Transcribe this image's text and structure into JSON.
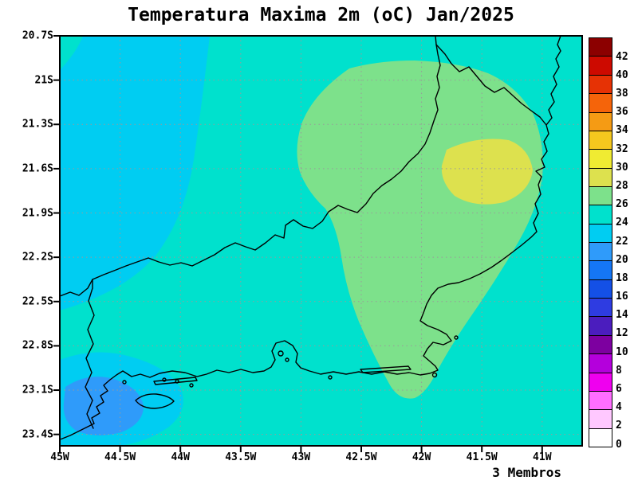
{
  "title": "Temperatura Maxima 2m (oC) Jan/2025",
  "footer": "3 Membros",
  "axes": {
    "lat_labels": [
      "20.7S",
      "21S",
      "21.3S",
      "21.6S",
      "21.9S",
      "22.2S",
      "22.5S",
      "22.8S",
      "23.1S",
      "23.4S"
    ],
    "lon_labels": [
      "45W",
      "44.5W",
      "44W",
      "43.5W",
      "43W",
      "42.5W",
      "42W",
      "41.5W",
      "41W"
    ]
  },
  "colorbar": {
    "unit": "oC",
    "tick_labels": [
      "0",
      "2",
      "4",
      "6",
      "8",
      "10",
      "12",
      "14",
      "16",
      "18",
      "20",
      "22",
      "24",
      "26",
      "28",
      "30",
      "32",
      "34",
      "36",
      "38",
      "40",
      "42"
    ],
    "segments": [
      {
        "range": "0-2",
        "color": "#ffffff"
      },
      {
        "range": "2-4",
        "color": "#ffc8ff"
      },
      {
        "range": "4-6",
        "color": "#ff6eff"
      },
      {
        "range": "6-8",
        "color": "#ef00ef"
      },
      {
        "range": "8-10",
        "color": "#b400dc"
      },
      {
        "range": "10-12",
        "color": "#7d00a0"
      },
      {
        "range": "12-14",
        "color": "#4b1dbe"
      },
      {
        "range": "14-16",
        "color": "#2e3ce1"
      },
      {
        "range": "16-18",
        "color": "#1450e6"
      },
      {
        "range": "18-20",
        "color": "#1576f5"
      },
      {
        "range": "20-22",
        "color": "#2f9bfa"
      },
      {
        "range": "22-24",
        "color": "#00cdf2"
      },
      {
        "range": "24-26",
        "color": "#00e1cd"
      },
      {
        "range": "26-28",
        "color": "#7de18b"
      },
      {
        "range": "28-30",
        "color": "#dde14e"
      },
      {
        "range": "30-32",
        "color": "#f0eb32"
      },
      {
        "range": "32-34",
        "color": "#f5c81e"
      },
      {
        "range": "34-36",
        "color": "#f59b14"
      },
      {
        "range": "36-38",
        "color": "#f5640a"
      },
      {
        "range": "38-40",
        "color": "#e63205"
      },
      {
        "range": "40-42",
        "color": "#cd0a00"
      },
      {
        "range": "42-44",
        "color": "#8c0000"
      }
    ]
  },
  "map": {
    "colors": {
      "field_24_26": "#00e1cd",
      "field_22_24": "#00cdf2",
      "field_26_28": "#7de18b",
      "field_28_30": "#dde14e",
      "field_20_22": "#2f9bfa",
      "coastline": "#000000",
      "grid": "#9a9a9a"
    }
  },
  "chart_data": {
    "type": "heatmap",
    "title": "Temperatura Maxima 2m (oC) Jan/2025",
    "variable": "2m maximum temperature",
    "unit": "oC",
    "period": "Jan/2025",
    "ensemble_note": "3 Membros",
    "x_axis": {
      "direction": "longitude (west)",
      "ticks": [
        "45W",
        "44.5W",
        "44W",
        "43.5W",
        "43W",
        "42.5W",
        "42W",
        "41.5W",
        "41W"
      ],
      "range": [
        45.0,
        40.67
      ]
    },
    "y_axis": {
      "direction": "latitude (south)",
      "ticks": [
        "20.7S",
        "21S",
        "21.3S",
        "21.6S",
        "21.9S",
        "22.2S",
        "22.5S",
        "22.8S",
        "23.1S",
        "23.4S"
      ],
      "range": [
        20.7,
        23.47
      ]
    },
    "grid": "dotted",
    "legend_position": "right",
    "color_scale": {
      "min": 0,
      "max": 44,
      "step": 2,
      "colors": [
        "#ffffff",
        "#ffc8ff",
        "#ff6eff",
        "#ef00ef",
        "#b400dc",
        "#7d00a0",
        "#4b1dbe",
        "#2e3ce1",
        "#1450e6",
        "#1576f5",
        "#2f9bfa",
        "#00cdf2",
        "#00e1cd",
        "#7de18b",
        "#dde14e",
        "#f0eb32",
        "#f5c81e",
        "#f59b14",
        "#f5640a",
        "#e63205",
        "#cd0a00",
        "#8c0000"
      ]
    },
    "filled_regions": [
      {
        "value_oC": "24-26",
        "where": "dominant field over most of the domain (turquoise)"
      },
      {
        "value_oC": "22-24",
        "where": "band along the northwest edge, ~45W-44.2W from 20.7S to ~22.4S"
      },
      {
        "value_oC": "26-28",
        "where": "broad lobe over the northeast interior, ~43.3W-41.2W, 20.9S-23.0S"
      },
      {
        "value_oC": "28-30",
        "where": "warm patch near 41.9W-41.1W, 21.4S-21.85S"
      },
      {
        "value_oC": "22-24",
        "where": "coastal pocket near Ilha Grande / Paraty, ~44.9W-44.0W, 22.85S-23.45S"
      },
      {
        "value_oC": "20-22",
        "where": "cool core of the southwest coastal pocket near 44.6W, 23.2S"
      }
    ],
    "overlay": "Rio de Janeiro state coastline and borders drawn in black"
  }
}
